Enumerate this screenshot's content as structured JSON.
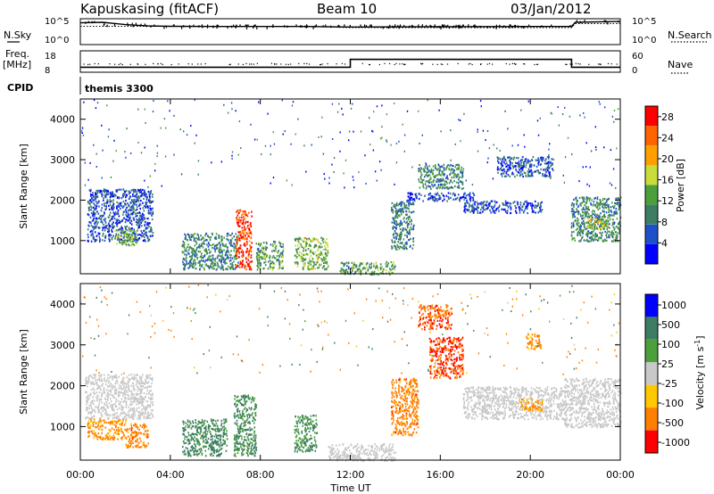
{
  "header": {
    "station": "Kapuskasing (fitACF)",
    "beam": "Beam 10",
    "date": "03/Jan/2012"
  },
  "top_panels": {
    "nsky_label": "N.Sky",
    "nsky_ticks": [
      "10^5",
      "10^0"
    ],
    "nsearch_label": "N.Search",
    "nsearch_ticks": [
      "10^5",
      "10^0"
    ],
    "freq_label": "Freq.",
    "freq_unit": "[MHz]",
    "freq_ticks": [
      "18",
      "8"
    ],
    "nave_label": "Nave",
    "nave_ticks": [
      "60",
      "0"
    ],
    "cpid_label": "CPID",
    "cpid_value": "themis 3300"
  },
  "colors": {
    "power_scale": [
      "#0000ff",
      "#1e50c8",
      "#3c7d64",
      "#4ba03c",
      "#c8dc3c",
      "#ffa000",
      "#ff6400",
      "#ff0000"
    ],
    "velocity_scale": [
      "#0000ff",
      "#3c7d64",
      "#4ba03c",
      "#c8c8c8",
      "#ffc800",
      "#ff8000",
      "#ff0000"
    ],
    "ground_scatter": "#c8c8c8"
  },
  "chart_data": [
    {
      "type": "line",
      "name": "nsky-nsearch",
      "x": [
        "00:00",
        "01:00",
        "02:00",
        "03:00",
        "04:00",
        "06:00",
        "08:00",
        "10:00",
        "12:00",
        "16:00",
        "20:00",
        "21:50",
        "22:00",
        "24:00"
      ],
      "series": [
        {
          "values": [
            30000,
            40000,
            12000,
            6000,
            5000,
            4500,
            4500,
            4500,
            3500,
            4000,
            4500,
            4500,
            40000,
            60000
          ]
        },
        {
          "values": [
            5000,
            5000,
            5000,
            5000,
            5000,
            5000,
            5000,
            5000,
            2500,
            2500,
            2500,
            2500,
            20000,
            20000
          ]
        }
      ],
      "ylim": [
        1,
        100000
      ],
      "yscale": "log"
    },
    {
      "type": "line",
      "name": "freq-nave",
      "x": [
        "00:00",
        "12:00",
        "12:00",
        "21:50",
        "21:50",
        "24:00"
      ],
      "series": [
        {
          "values": [
            10.2,
            10.2,
            14.4,
            14.4,
            10.2,
            10.2
          ]
        },
        {
          "values": [
            25,
            25,
            25,
            25,
            25,
            25
          ]
        }
      ],
      "ylim": [
        8,
        18
      ]
    },
    {
      "type": "heatmap",
      "name": "power",
      "xlabel": "Time UT",
      "ylabel": "Slant Range [km]",
      "x_ticks": [
        "00:00",
        "04:00",
        "08:00",
        "12:00",
        "16:00",
        "20:00",
        "00:00"
      ],
      "xlim": [
        0,
        24
      ],
      "y_ticks": [
        1000,
        2000,
        3000,
        4000
      ],
      "ylim": [
        180,
        4500
      ],
      "colorbar": {
        "label": "Power [dB]",
        "ticks": [
          4,
          8,
          12,
          16,
          20,
          24,
          28
        ],
        "range": [
          0,
          30
        ]
      },
      "regions": [
        {
          "t": [
            0.3,
            3.2
          ],
          "r": [
            1000,
            2300
          ],
          "v": 6
        },
        {
          "t": [
            1.5,
            2.5
          ],
          "r": [
            900,
            1300
          ],
          "v": 14
        },
        {
          "t": [
            4.5,
            7.0
          ],
          "r": [
            300,
            1200
          ],
          "v": 10
        },
        {
          "t": [
            6.9,
            7.6
          ],
          "r": [
            300,
            1800
          ],
          "v": 26
        },
        {
          "t": [
            7.8,
            9.0
          ],
          "r": [
            300,
            1000
          ],
          "v": 12
        },
        {
          "t": [
            9.5,
            11.0
          ],
          "r": [
            300,
            1100
          ],
          "v": 14
        },
        {
          "t": [
            11.5,
            14.0
          ],
          "r": [
            180,
            500
          ],
          "v": 12
        },
        {
          "t": [
            13.8,
            14.8
          ],
          "r": [
            800,
            2000
          ],
          "v": 9
        },
        {
          "t": [
            15.0,
            17.0
          ],
          "r": [
            2300,
            2900
          ],
          "v": 10
        },
        {
          "t": [
            14.5,
            17.5
          ],
          "r": [
            2000,
            2200
          ],
          "v": 5
        },
        {
          "t": [
            17.0,
            20.5
          ],
          "r": [
            1700,
            2000
          ],
          "v": 5
        },
        {
          "t": [
            18.5,
            21.0
          ],
          "r": [
            2600,
            3100
          ],
          "v": 6
        },
        {
          "t": [
            21.8,
            24.0
          ],
          "r": [
            1000,
            2100
          ],
          "v": 10
        },
        {
          "t": [
            22.5,
            23.5
          ],
          "r": [
            1300,
            1600
          ],
          "v": 16
        }
      ]
    },
    {
      "type": "heatmap",
      "name": "velocity",
      "ylabel": "Slant Range [km]",
      "x_ticks": [
        "00:00",
        "04:00",
        "08:00",
        "12:00",
        "16:00",
        "20:00",
        "00:00"
      ],
      "xlim": [
        0,
        24
      ],
      "y_ticks": [
        1000,
        2000,
        3000,
        4000
      ],
      "ylim": [
        180,
        4500
      ],
      "colorbar": {
        "label": "Velocity [m s",
        "label_sup": "-1",
        "label_end": "]",
        "ticks": [
          1000,
          500,
          100,
          25,
          -25,
          -100,
          -500,
          -1000
        ]
      },
      "regions": [
        {
          "t": [
            0.2,
            3.2
          ],
          "r": [
            1200,
            2300
          ],
          "v": 0,
          "gs": true
        },
        {
          "t": [
            0.3,
            2.0
          ],
          "r": [
            700,
            1200
          ],
          "v": -150
        },
        {
          "t": [
            2.0,
            3.0
          ],
          "r": [
            500,
            1100
          ],
          "v": -300
        },
        {
          "t": [
            4.5,
            6.5
          ],
          "r": [
            300,
            1200
          ],
          "v": 150
        },
        {
          "t": [
            6.8,
            7.8
          ],
          "r": [
            300,
            1800
          ],
          "v": 120
        },
        {
          "t": [
            9.5,
            10.5
          ],
          "r": [
            400,
            1300
          ],
          "v": 100
        },
        {
          "t": [
            11.0,
            14.0
          ],
          "r": [
            180,
            600
          ],
          "v": 0,
          "gs": true
        },
        {
          "t": [
            13.8,
            15.0
          ],
          "r": [
            800,
            2200
          ],
          "v": -300
        },
        {
          "t": [
            15.5,
            17.0
          ],
          "r": [
            2200,
            3200
          ],
          "v": -500
        },
        {
          "t": [
            15.0,
            16.5
          ],
          "r": [
            3400,
            4000
          ],
          "v": -400
        },
        {
          "t": [
            17.0,
            21.5
          ],
          "r": [
            1200,
            2000
          ],
          "v": 0,
          "gs": true
        },
        {
          "t": [
            19.8,
            20.5
          ],
          "r": [
            2900,
            3300
          ],
          "v": -150
        },
        {
          "t": [
            21.5,
            24.0
          ],
          "r": [
            1000,
            2200
          ],
          "v": 0,
          "gs": true
        },
        {
          "t": [
            19.5,
            20.5
          ],
          "r": [
            1400,
            1700
          ],
          "v": -120
        }
      ]
    }
  ]
}
